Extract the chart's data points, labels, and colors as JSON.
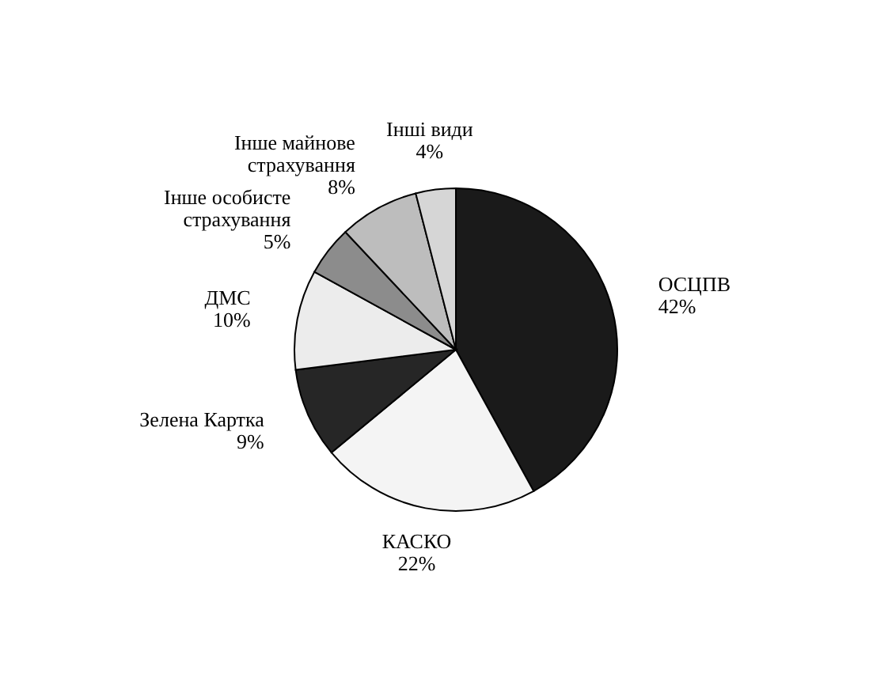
{
  "chart_data": {
    "type": "pie",
    "categories": [
      "ОСЦПВ",
      "КАСКО",
      "Зелена Картка",
      "ДМС",
      "Інше особисте страхування",
      "Інше майнове страхування",
      "Інші види"
    ],
    "values": [
      42,
      22,
      9,
      10,
      5,
      8,
      4
    ],
    "colors": [
      "#1a1a1a",
      "#f4f4f4",
      "#262626",
      "#ececec",
      "#8c8c8c",
      "#bdbdbd",
      "#d6d6d6"
    ],
    "value_labels": [
      "42%",
      "22%",
      "9%",
      "10%",
      "5%",
      "8%",
      "4%"
    ]
  }
}
